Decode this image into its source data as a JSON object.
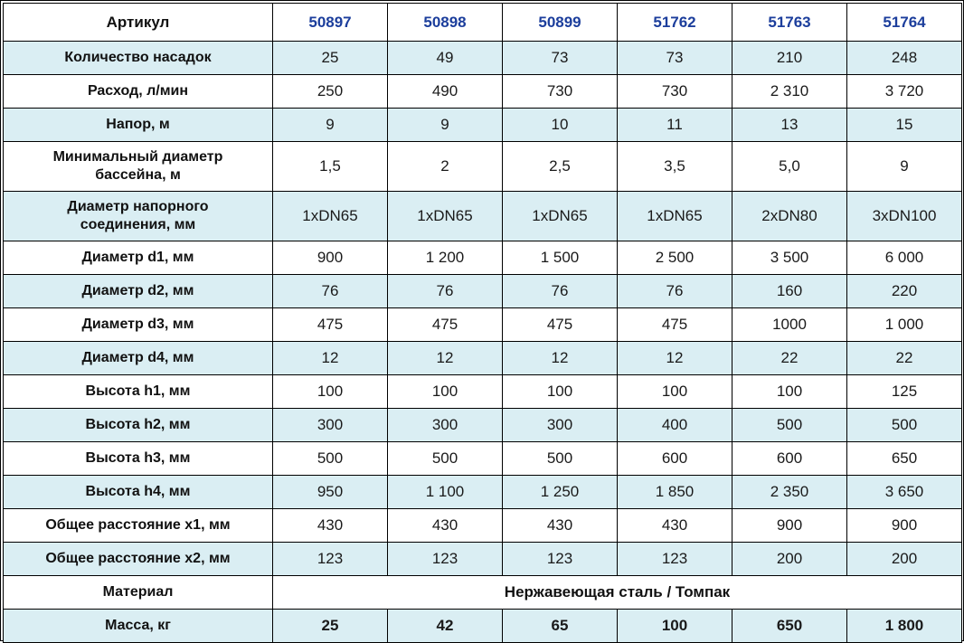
{
  "colors": {
    "shaded_row_bg": "#daeef3",
    "article_text_blue": "#1c3e9c",
    "border": "#000000",
    "page_background": "#ffffff"
  },
  "table": {
    "header": {
      "label": "Артикул",
      "articles": [
        "50897",
        "50898",
        "50899",
        "51762",
        "51763",
        "51764"
      ]
    },
    "rows": [
      {
        "label": "Количество насадок",
        "values": [
          "25",
          "49",
          "73",
          "73",
          "210",
          "248"
        ],
        "shaded": true
      },
      {
        "label": "Расход, л/мин",
        "values": [
          "250",
          "490",
          "730",
          "730",
          "2 310",
          "3 720"
        ],
        "shaded": false
      },
      {
        "label": "Напор, м",
        "values": [
          "9",
          "9",
          "10",
          "11",
          "13",
          "15"
        ],
        "shaded": true
      },
      {
        "label": "Минимальный диаметр\nбассейна, м",
        "values": [
          "1,5",
          "2",
          "2,5",
          "3,5",
          "5,0",
          "9"
        ],
        "shaded": false,
        "two_line": true
      },
      {
        "label": "Диаметр напорного\nсоединения, мм",
        "values": [
          "1xDN65",
          "1xDN65",
          "1xDN65",
          "1xDN65",
          "2xDN80",
          "3xDN100"
        ],
        "shaded": true,
        "two_line": true
      },
      {
        "label": "Диаметр d1, мм",
        "values": [
          "900",
          "1 200",
          "1 500",
          "2 500",
          "3 500",
          "6 000"
        ],
        "shaded": false
      },
      {
        "label": "Диаметр d2, мм",
        "values": [
          "76",
          "76",
          "76",
          "76",
          "160",
          "220"
        ],
        "shaded": true
      },
      {
        "label": "Диаметр d3, мм",
        "values": [
          "475",
          "475",
          "475",
          "475",
          "1000",
          "1 000"
        ],
        "shaded": false
      },
      {
        "label": "Диаметр d4, мм",
        "values": [
          "12",
          "12",
          "12",
          "12",
          "22",
          "22"
        ],
        "shaded": true
      },
      {
        "label": "Высота h1, мм",
        "values": [
          "100",
          "100",
          "100",
          "100",
          "100",
          "125"
        ],
        "shaded": false
      },
      {
        "label": "Высота h2, мм",
        "values": [
          "300",
          "300",
          "300",
          "400",
          "500",
          "500"
        ],
        "shaded": true
      },
      {
        "label": "Высота h3, мм",
        "values": [
          "500",
          "500",
          "500",
          "600",
          "600",
          "650"
        ],
        "shaded": false
      },
      {
        "label": "Высота h4, мм",
        "values": [
          "950",
          "1 100",
          "1 250",
          "1 850",
          "2 350",
          "3 650"
        ],
        "shaded": true
      },
      {
        "label": "Общее расстояние x1, мм",
        "values": [
          "430",
          "430",
          "430",
          "430",
          "900",
          "900"
        ],
        "shaded": false
      },
      {
        "label": "Общее расстояние x2, мм",
        "values": [
          "123",
          "123",
          "123",
          "123",
          "200",
          "200"
        ],
        "shaded": true
      },
      {
        "label": "Материал",
        "merged_value": "Нержавеющая сталь / Томпак",
        "shaded": false
      },
      {
        "label": "Масса, кг",
        "values": [
          "25",
          "42",
          "65",
          "100",
          "650",
          "1 800"
        ],
        "shaded": true,
        "bold_values": true
      }
    ]
  }
}
